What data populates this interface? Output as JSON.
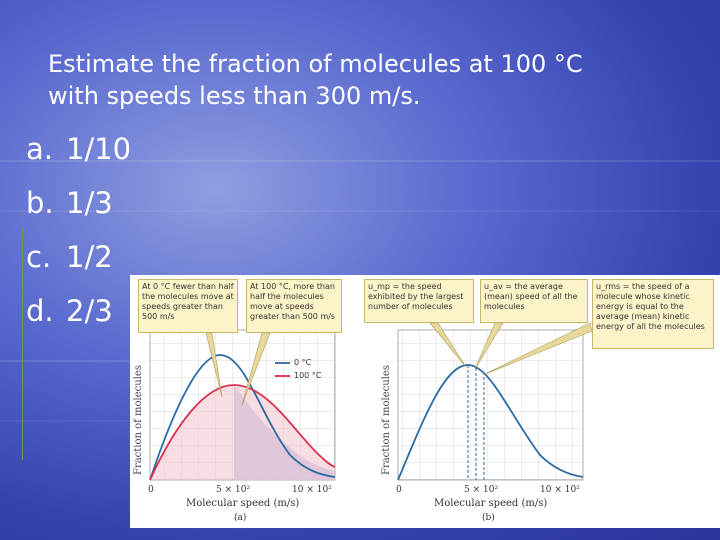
{
  "question": {
    "line1": "Estimate the fraction of molecules at 100 °C",
    "line2": "with speeds less than 300 m/s."
  },
  "options": [
    {
      "label": "a.",
      "text": "1/10"
    },
    {
      "label": "b.",
      "text": "1/3"
    },
    {
      "label": "c.",
      "text": "1/2"
    },
    {
      "label": "d.",
      "text": "2/3"
    }
  ],
  "figure": {
    "callouts": [
      "At 0 °C fewer than half the molecules move at speeds greater than 500 m/s",
      "At 100 °C, more than half the molecules move at speeds greater than 500 m/s",
      "u_mp = the speed exhibited by the largest number of molecules",
      "u_av = the average (mean) speed of all the molecules",
      "u_rms = the speed of a molecule whose kinetic energy is equal to the average (mean) kinetic energy of all the molecules"
    ],
    "ylabel": "Fraction of molecules",
    "xlabel": "Molecular speed (m/s)",
    "ticks": [
      "0",
      "5 × 10²",
      "10 × 10²"
    ],
    "legend": [
      "0 °C",
      "100 °C"
    ],
    "panel_a": "(a)",
    "panel_b": "(b)",
    "colors": {
      "cold": "#2c6aa3",
      "hot": "#d9304e",
      "shade": "#b9bde6"
    }
  }
}
